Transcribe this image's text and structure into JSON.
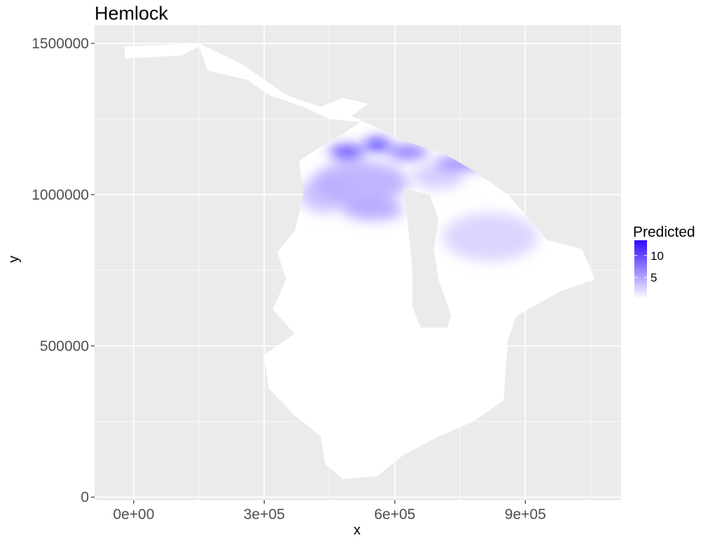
{
  "chart_data": {
    "type": "heatmap",
    "title": "Hemlock",
    "xlabel": "x",
    "ylabel": "y",
    "xlim": [
      -90000,
      1120000
    ],
    "ylim": [
      -10000,
      1560000
    ],
    "x_ticks": [
      0,
      300000,
      600000,
      900000
    ],
    "x_tick_labels": [
      "0e+00",
      "3e+05",
      "6e+05",
      "9e+05"
    ],
    "y_ticks": [
      0,
      500000,
      1000000,
      1500000
    ],
    "y_tick_labels": [
      "0",
      "500000",
      "1000000",
      "1500000"
    ],
    "grid": true,
    "legend": {
      "title": "Predicted",
      "position": "right",
      "ticks": [
        5,
        10
      ],
      "tick_labels": [
        "5",
        "10"
      ],
      "range": [
        0,
        13.5
      ],
      "low_color": "#ffffff",
      "high_color": "#2f0aff"
    },
    "colors": {
      "panel_background": "#ebebeb",
      "grid": "#ffffff",
      "land_fill": "#ffffff",
      "high": "#2f0aff"
    },
    "region_outline": [
      [
        -20000,
        1450000
      ],
      [
        110000,
        1460000
      ],
      [
        150000,
        1490000
      ],
      [
        170000,
        1410000
      ],
      [
        260000,
        1380000
      ],
      [
        310000,
        1330000
      ],
      [
        390000,
        1290000
      ],
      [
        450000,
        1250000
      ],
      [
        520000,
        1240000
      ],
      [
        480000,
        1200000
      ],
      [
        420000,
        1150000
      ],
      [
        380000,
        1110000
      ],
      [
        390000,
        1000000
      ],
      [
        370000,
        880000
      ],
      [
        330000,
        810000
      ],
      [
        350000,
        720000
      ],
      [
        320000,
        620000
      ],
      [
        370000,
        540000
      ],
      [
        300000,
        470000
      ],
      [
        310000,
        360000
      ],
      [
        370000,
        270000
      ],
      [
        430000,
        200000
      ],
      [
        440000,
        110000
      ],
      [
        480000,
        60000
      ],
      [
        560000,
        70000
      ],
      [
        620000,
        140000
      ],
      [
        700000,
        200000
      ],
      [
        780000,
        250000
      ],
      [
        850000,
        320000
      ],
      [
        860000,
        520000
      ],
      [
        880000,
        600000
      ],
      [
        980000,
        680000
      ],
      [
        1060000,
        720000
      ],
      [
        1030000,
        820000
      ],
      [
        950000,
        850000
      ],
      [
        860000,
        1000000
      ],
      [
        780000,
        1080000
      ],
      [
        720000,
        1130000
      ],
      [
        680000,
        1150000
      ],
      [
        620000,
        1180000
      ],
      [
        560000,
        1220000
      ],
      [
        500000,
        1260000
      ],
      [
        540000,
        1300000
      ],
      [
        480000,
        1320000
      ],
      [
        430000,
        1290000
      ],
      [
        350000,
        1330000
      ],
      [
        300000,
        1380000
      ],
      [
        250000,
        1430000
      ],
      [
        150000,
        1500000
      ],
      [
        -20000,
        1490000
      ]
    ],
    "lake_michigan": [
      [
        620000,
        1020000
      ],
      [
        680000,
        1000000
      ],
      [
        700000,
        920000
      ],
      [
        690000,
        820000
      ],
      [
        700000,
        720000
      ],
      [
        730000,
        600000
      ],
      [
        720000,
        560000
      ],
      [
        660000,
        560000
      ],
      [
        640000,
        630000
      ],
      [
        640000,
        760000
      ],
      [
        630000,
        900000
      ]
    ],
    "hotspots": [
      {
        "x": 560000,
        "y": 1165000,
        "value": 13.5,
        "rx": 30000,
        "ry": 20000
      },
      {
        "x": 490000,
        "y": 1140000,
        "value": 12.0,
        "rx": 40000,
        "ry": 22000
      },
      {
        "x": 630000,
        "y": 1140000,
        "value": 9.0,
        "rx": 45000,
        "ry": 22000
      },
      {
        "x": 760000,
        "y": 1105000,
        "value": 7.5,
        "rx": 70000,
        "ry": 22000
      },
      {
        "x": 520000,
        "y": 1040000,
        "value": 4.5,
        "rx": 110000,
        "ry": 70000
      },
      {
        "x": 550000,
        "y": 950000,
        "value": 5.0,
        "rx": 70000,
        "ry": 35000
      },
      {
        "x": 440000,
        "y": 1000000,
        "value": 3.5,
        "rx": 60000,
        "ry": 60000
      },
      {
        "x": 820000,
        "y": 860000,
        "value": 2.5,
        "rx": 110000,
        "ry": 80000
      },
      {
        "x": 700000,
        "y": 1060000,
        "value": 3.0,
        "rx": 60000,
        "ry": 40000
      }
    ]
  }
}
